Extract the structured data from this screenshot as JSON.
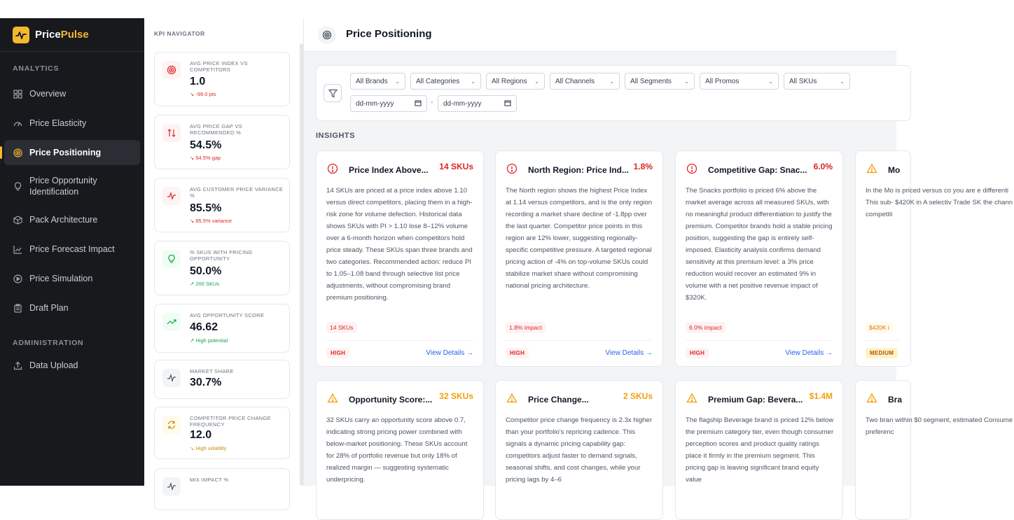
{
  "app": {
    "brand_a": "Price",
    "brand_b": "Pulse"
  },
  "sidebar": {
    "sections": [
      "ANALYTICS",
      "ADMINISTRATION"
    ],
    "items": [
      {
        "label": "Overview",
        "icon": "grid-icon"
      },
      {
        "label": "Price Elasticity",
        "icon": "gauge-icon"
      },
      {
        "label": "Price Positioning",
        "icon": "target-icon",
        "active": true
      },
      {
        "label": "Price Opportunity Identification",
        "icon": "lightbulb-icon"
      },
      {
        "label": "Pack Architecture",
        "icon": "package-icon"
      },
      {
        "label": "Price Forecast Impact",
        "icon": "line-chart-icon"
      },
      {
        "label": "Price Simulation",
        "icon": "play-circle-icon"
      },
      {
        "label": "Draft Plan",
        "icon": "clipboard-icon"
      }
    ],
    "admin_items": [
      {
        "label": "Data Upload",
        "icon": "upload-icon"
      }
    ]
  },
  "kpi": {
    "heading": "KPI NAVIGATOR",
    "cards": [
      {
        "label": "AVG PRICE INDEX VS COMPETITORS",
        "value": "1.0",
        "delta": "↘ -99.0 pts",
        "tone": "red"
      },
      {
        "label": "AVG PRICE GAP VS RECOMMENDED %",
        "value": "54.5%",
        "delta": "↘ 54.5% gap",
        "tone": "red"
      },
      {
        "label": "AVG CUSTOMER PRICE VARIANCE %",
        "value": "85.5%",
        "delta": "↘ 85.5% variance",
        "tone": "red"
      },
      {
        "label": "% SKUS WITH PRICING OPPORTUNITY",
        "value": "50.0%",
        "delta": "↗ 200 SKUs",
        "tone": "green"
      },
      {
        "label": "AVG OPPORTUNITY SCORE",
        "value": "46.62",
        "delta": "↗ High potential",
        "tone": "green"
      },
      {
        "label": "MARKET SHARE",
        "value": "30.7%",
        "delta": "",
        "tone": "none"
      },
      {
        "label": "COMPETITOR PRICE CHANGE FREQUENCY",
        "value": "12.0",
        "delta": "↘ High volatility",
        "tone": "amber"
      },
      {
        "label": "MIX IMPACT %",
        "value": "",
        "delta": "",
        "tone": "none"
      }
    ]
  },
  "page": {
    "title": "Price Positioning"
  },
  "filters": {
    "selects": [
      "All Brands",
      "All Categories",
      "All Regions",
      "All Channels",
      "All Segments",
      "All Promos",
      "All SKUs"
    ],
    "date_placeholder": "dd-mm-yyyy",
    "date_sep": "-"
  },
  "insights": {
    "heading": "INSIGHTS",
    "view_details": "View Details →",
    "cards": [
      {
        "title": "Price Index Above...",
        "metric": "14 SKUs",
        "tone": "red",
        "body": "14 SKUs are priced at a price index above 1.10 versus direct competitors, placing them in a high-risk zone for volume defection. Historical data shows SKUs with PI > 1.10 lose 8–12% volume over a 6-month horizon when competitors hold price steady. These SKUs span three brands and two categories. Recommended action: reduce PI to 1.05–1.08 band through selective list price adjustments, without compromising brand premium positioning.",
        "tag": "14 SKUs",
        "priority": "HIGH"
      },
      {
        "title": "North Region: Price Ind...",
        "metric": "1.8%",
        "tone": "red",
        "body": "The North region shows the highest Price Index at 1.14 versus competitors, and is the only region recording a market share decline of -1.8pp over the last quarter. Competitor price points in this region are 12% lower, suggesting regionally-specific competitive pressure. A targeted regional pricing action of -4% on top-volume SKUs could stabilize market share without compromising national pricing architecture.",
        "tag": "1.8% impact",
        "priority": "HIGH"
      },
      {
        "title": "Competitive Gap: Snac...",
        "metric": "6.0%",
        "tone": "red",
        "body": "The Snacks portfolio is priced 6% above the market average across all measured SKUs, with no meaningful product differentiation to justify the premium. Competitor brands hold a stable pricing position, suggesting the gap is entirely self-imposed. Elasticity analysis confirms demand sensitivity at this premium level: a 3% price reduction would recover an estimated 9% in volume with a net positive revenue impact of $320K.",
        "tag": "6.0% impact",
        "priority": "HIGH"
      },
      {
        "title": "Mo",
        "metric": "",
        "tone": "amber",
        "body": "In the Mo is priced versus co you are e differenti This sub- $420K in A selectiv Trade SK the chann competiti",
        "tag": "$420K i",
        "priority": "MEDIUM"
      },
      {
        "title": "Opportunity Score:...",
        "metric": "32 SKUs",
        "tone": "amber",
        "body": "32 SKUs carry an opportunity score above 0.7, indicating strong pricing power combined with below-market positioning. These SKUs account for 28% of portfolio revenue but only 18% of realized margin — suggesting systematic underpricing.",
        "tag": "",
        "priority": ""
      },
      {
        "title": "Price Change...",
        "metric": "2 SKUs",
        "tone": "amber",
        "body": "Competitor price change frequency is 2.3x higher than your portfolio's repricing cadence. This signals a dynamic pricing capability gap: competitors adjust faster to demand signals, seasonal shifts, and cost changes, while your pricing lags by 4–6",
        "tag": "",
        "priority": ""
      },
      {
        "title": "Premium Gap: Bevera...",
        "metric": "$1.4M",
        "tone": "amber",
        "body": "The flagship Beverage brand is priced 12% below the premium category tier, even though consumer perception scores and product quality ratings place it firmly in the premium segment. This pricing gap is leaving significant brand equity value",
        "tag": "",
        "priority": ""
      },
      {
        "title": "Bra",
        "metric": "",
        "tone": "amber",
        "body": "Two bran within $0 segment, estimated Consume preferenc",
        "tag": "",
        "priority": ""
      }
    ]
  },
  "colors": {
    "accent": "#f5b82e",
    "sidebar_bg": "#17191d",
    "danger": "#dc2626",
    "warning": "#f59e0b",
    "link": "#2563eb"
  }
}
